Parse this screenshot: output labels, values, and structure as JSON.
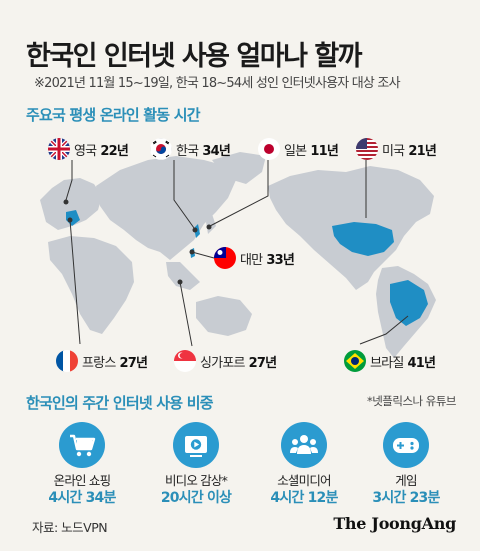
{
  "title": "한국인 인터넷 사용 얼마나 할까",
  "subtitle": "※2021년 11월 15~19일, 한국 18~54세 성인 인터넷사용자 대상 조사",
  "lifetime_section": {
    "title": "주요국 평생 온라인 활동 시간",
    "countries": [
      {
        "name": "영국",
        "value": "22년"
      },
      {
        "name": "한국",
        "value": "34년"
      },
      {
        "name": "일본",
        "value": "11년"
      },
      {
        "name": "미국",
        "value": "21년"
      },
      {
        "name": "대만",
        "value": "33년"
      },
      {
        "name": "프랑스",
        "value": "27년"
      },
      {
        "name": "싱가포르",
        "value": "27년"
      },
      {
        "name": "브라질",
        "value": "41년"
      }
    ]
  },
  "weekly_section": {
    "title": "한국인의 주간 인터넷 사용 비중",
    "footnote": "*넷플릭스나 유튜브",
    "categories": [
      {
        "label": "온라인 쇼핑",
        "value": "4시간 34분",
        "icon": "shopping-cart-icon"
      },
      {
        "label": "비디오 감상*",
        "value": "20시간 이상",
        "icon": "video-play-icon"
      },
      {
        "label": "소셜미디어",
        "value": "4시간 12분",
        "icon": "people-icon"
      },
      {
        "label": "게임",
        "value": "3시간 23분",
        "icon": "gamepad-icon"
      }
    ]
  },
  "source": "자료: 노드VPN",
  "brand": "The JoongAng",
  "colors": {
    "accent": "#2b8fb8",
    "map_land": "#c8ccd2",
    "highlight_land": "#1f8ec4",
    "background": "#f5f3ee"
  }
}
